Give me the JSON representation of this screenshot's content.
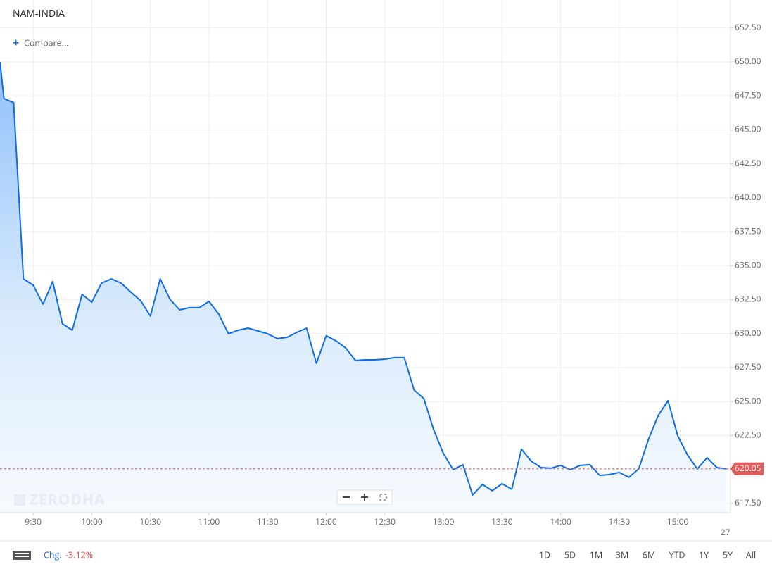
{
  "chart_data": {
    "type": "line",
    "title": "NAM-INDIA",
    "x": [
      "9:13",
      "9:15",
      "9:20",
      "9:25",
      "9:30",
      "9:35",
      "9:40",
      "9:45",
      "9:50",
      "9:55",
      "10:00",
      "10:05",
      "10:10",
      "10:15",
      "10:20",
      "10:25",
      "10:30",
      "10:35",
      "10:40",
      "10:45",
      "10:50",
      "10:55",
      "11:00",
      "11:05",
      "11:10",
      "11:15",
      "11:20",
      "11:25",
      "11:30",
      "11:35",
      "11:40",
      "11:45",
      "11:50",
      "11:55",
      "12:00",
      "12:05",
      "12:10",
      "12:15",
      "12:20",
      "12:25",
      "12:30",
      "12:35",
      "12:40",
      "12:45",
      "12:50",
      "12:55",
      "13:00",
      "13:05",
      "13:10",
      "13:15",
      "13:20",
      "13:25",
      "13:30",
      "13:35",
      "13:40",
      "13:45",
      "13:50",
      "13:55",
      "14:00",
      "14:05",
      "14:10",
      "14:15",
      "14:20",
      "14:25",
      "14:30",
      "14:35",
      "14:40",
      "14:45",
      "14:50",
      "14:55",
      "15:00",
      "15:05",
      "15:10",
      "15:15",
      "15:20",
      "15:25"
    ],
    "series": [
      {
        "name": "NAM-INDIA",
        "color": "#0f6ce6",
        "values": [
          650.0,
          647.3,
          647.0,
          634.03,
          633.57,
          632.17,
          633.83,
          630.72,
          630.25,
          632.89,
          632.32,
          633.72,
          634.03,
          633.72,
          633.05,
          632.43,
          631.29,
          634.03,
          632.53,
          631.75,
          631.91,
          631.91,
          632.37,
          631.44,
          629.99,
          630.25,
          630.4,
          630.2,
          629.99,
          629.63,
          629.73,
          630.09,
          630.4,
          627.81,
          629.84,
          629.47,
          628.95,
          628.02,
          628.07,
          628.07,
          628.12,
          628.23,
          628.23,
          625.84,
          625.22,
          622.94,
          621.18,
          619.98,
          620.35,
          618.12,
          618.9,
          618.43,
          618.95,
          618.54,
          621.49,
          620.61,
          620.14,
          620.09,
          620.3,
          619.98,
          620.3,
          620.35,
          619.57,
          619.62,
          619.78,
          619.42,
          620.04,
          622.21,
          623.98,
          625.07,
          622.47,
          621.07,
          620.04,
          620.87,
          620.14,
          620.05
        ]
      }
    ],
    "xlim": [
      "9:13",
      "15:27"
    ],
    "xticks": [
      "9:30",
      "10:00",
      "10:30",
      "11:00",
      "11:30",
      "12:00",
      "12:30",
      "13:00",
      "13:30",
      "14:00",
      "14:30",
      "15:00"
    ],
    "x_edge_label": "27",
    "ylim": [
      616.82,
      654.56
    ],
    "yticks": [
      {
        "value": 617.5,
        "label": "617.50"
      },
      {
        "value": 620,
        "label": "620.00"
      },
      {
        "value": 622.5,
        "label": "622.50"
      },
      {
        "value": 625,
        "label": "625.00"
      },
      {
        "value": 627.5,
        "label": "627.50"
      },
      {
        "value": 630,
        "label": "630.00"
      },
      {
        "value": 632.5,
        "label": "632.50"
      },
      {
        "value": 635,
        "label": "635.00"
      },
      {
        "value": 637.5,
        "label": "637.50"
      },
      {
        "value": 640,
        "label": "640.00"
      },
      {
        "value": 642.5,
        "label": "642.50"
      },
      {
        "value": 645,
        "label": "645.00"
      },
      {
        "value": 647.5,
        "label": "647.50"
      },
      {
        "value": 650,
        "label": "650.00"
      },
      {
        "value": 652.5,
        "label": "652.50"
      }
    ],
    "last_value": 620.05,
    "last_color": "#e25a5a",
    "grid": true
  },
  "ui": {
    "compare": "Compare...",
    "watermark": "ZERODHA",
    "change_label": "Chg.",
    "change": -3.12,
    "change_label_value": "-3.12%",
    "ranges": [
      "1D",
      "5D",
      "1M",
      "3M",
      "6M",
      "YTD",
      "1Y",
      "5Y",
      "All"
    ]
  }
}
